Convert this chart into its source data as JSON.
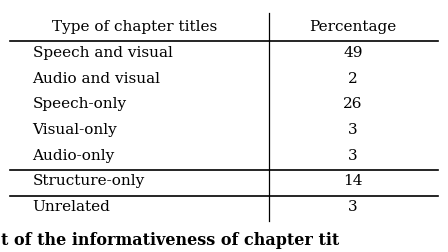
{
  "col_headers": [
    "Type of chapter titles",
    "Percentage"
  ],
  "rows": [
    [
      "Speech and visual",
      "49"
    ],
    [
      "Audio and visual",
      "2"
    ],
    [
      "Speech-only",
      "26"
    ],
    [
      "Visual-only",
      "3"
    ],
    [
      "Audio-only",
      "3"
    ],
    [
      "Structure-only",
      "14"
    ],
    [
      "Unrelated",
      "3"
    ]
  ],
  "caption": "t of the informativeness of chapter tit",
  "background_color": "#ffffff",
  "text_color": "#000000",
  "font_size": 11,
  "caption_fontsize": 11.5
}
